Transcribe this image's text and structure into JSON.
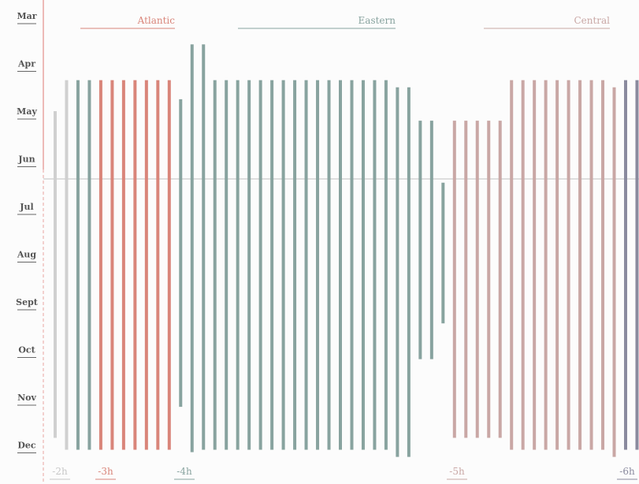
{
  "chart_data": {
    "type": "bar",
    "orientation": "vertical-range",
    "y_categories": [
      "Mar",
      "Apr",
      "May",
      "Jun",
      "Jul",
      "Aug",
      "Sept",
      "Oct",
      "Nov",
      "Dec"
    ],
    "zones": [
      {
        "name": "Atlantic",
        "color": "#d9857a"
      },
      {
        "name": "Eastern",
        "color": "#88a39f"
      },
      {
        "name": "Central",
        "color": "#c9a7a5"
      }
    ],
    "offsets": [
      {
        "label": "-2h",
        "color": "#c8c8c8"
      },
      {
        "label": "-3h",
        "color": "#d9857a"
      },
      {
        "label": "-4h",
        "color": "#88a39f"
      },
      {
        "label": "-5h",
        "color": "#c9a7a5"
      },
      {
        "label": "-6h",
        "color": "#8a8a9e"
      }
    ],
    "colors": {
      "gray": "#d0d0d0",
      "atlantic": "#d9857a",
      "eastern": "#88a39f",
      "central": "#c9a7a5",
      "mountain": "#8a8a9e",
      "axis_red": "#e8a3a0",
      "divider": "#bfbfbf"
    },
    "bars": [
      {
        "start": 2.0,
        "end": 8.85,
        "color": "gray"
      },
      {
        "start": 1.35,
        "end": 9.1,
        "color": "gray"
      },
      {
        "start": 1.35,
        "end": 9.1,
        "color": "eastern"
      },
      {
        "start": 1.35,
        "end": 9.1,
        "color": "eastern"
      },
      {
        "start": 1.35,
        "end": 9.1,
        "color": "atlantic"
      },
      {
        "start": 1.35,
        "end": 9.1,
        "color": "atlantic"
      },
      {
        "start": 1.35,
        "end": 9.1,
        "color": "atlantic"
      },
      {
        "start": 1.35,
        "end": 9.1,
        "color": "atlantic"
      },
      {
        "start": 1.35,
        "end": 9.1,
        "color": "atlantic"
      },
      {
        "start": 1.35,
        "end": 9.1,
        "color": "atlantic"
      },
      {
        "start": 1.35,
        "end": 9.1,
        "color": "atlantic"
      },
      {
        "start": 1.75,
        "end": 8.2,
        "color": "eastern"
      },
      {
        "start": 0.6,
        "end": 9.15,
        "color": "eastern"
      },
      {
        "start": 0.6,
        "end": 9.1,
        "color": "eastern"
      },
      {
        "start": 1.35,
        "end": 9.1,
        "color": "eastern"
      },
      {
        "start": 1.35,
        "end": 9.1,
        "color": "eastern"
      },
      {
        "start": 1.35,
        "end": 9.1,
        "color": "eastern"
      },
      {
        "start": 1.35,
        "end": 9.1,
        "color": "eastern"
      },
      {
        "start": 1.35,
        "end": 9.1,
        "color": "eastern"
      },
      {
        "start": 1.35,
        "end": 9.1,
        "color": "eastern"
      },
      {
        "start": 1.35,
        "end": 9.1,
        "color": "eastern"
      },
      {
        "start": 1.35,
        "end": 9.1,
        "color": "eastern"
      },
      {
        "start": 1.35,
        "end": 9.1,
        "color": "eastern"
      },
      {
        "start": 1.35,
        "end": 9.1,
        "color": "eastern"
      },
      {
        "start": 1.35,
        "end": 9.1,
        "color": "eastern"
      },
      {
        "start": 1.35,
        "end": 9.1,
        "color": "eastern"
      },
      {
        "start": 1.35,
        "end": 9.1,
        "color": "eastern"
      },
      {
        "start": 1.35,
        "end": 9.1,
        "color": "eastern"
      },
      {
        "start": 1.35,
        "end": 9.1,
        "color": "eastern"
      },
      {
        "start": 1.35,
        "end": 9.1,
        "color": "eastern"
      },
      {
        "start": 1.5,
        "end": 9.25,
        "color": "eastern"
      },
      {
        "start": 1.5,
        "end": 9.25,
        "color": "eastern"
      },
      {
        "start": 2.2,
        "end": 7.2,
        "color": "eastern"
      },
      {
        "start": 2.2,
        "end": 7.2,
        "color": "eastern"
      },
      {
        "start": 3.5,
        "end": 6.45,
        "color": "eastern"
      },
      {
        "start": 2.2,
        "end": 8.85,
        "color": "central"
      },
      {
        "start": 2.2,
        "end": 8.85,
        "color": "central"
      },
      {
        "start": 2.2,
        "end": 8.85,
        "color": "central"
      },
      {
        "start": 2.2,
        "end": 8.85,
        "color": "central"
      },
      {
        "start": 2.2,
        "end": 8.85,
        "color": "central"
      },
      {
        "start": 1.35,
        "end": 9.1,
        "color": "central"
      },
      {
        "start": 1.35,
        "end": 9.1,
        "color": "central"
      },
      {
        "start": 1.35,
        "end": 9.1,
        "color": "central"
      },
      {
        "start": 1.35,
        "end": 9.1,
        "color": "central"
      },
      {
        "start": 1.35,
        "end": 9.1,
        "color": "central"
      },
      {
        "start": 1.35,
        "end": 9.1,
        "color": "central"
      },
      {
        "start": 1.35,
        "end": 9.1,
        "color": "central"
      },
      {
        "start": 1.35,
        "end": 9.1,
        "color": "central"
      },
      {
        "start": 1.35,
        "end": 9.1,
        "color": "central"
      },
      {
        "start": 1.5,
        "end": 9.25,
        "color": "central"
      },
      {
        "start": 1.35,
        "end": 9.1,
        "color": "mountain"
      },
      {
        "start": 1.35,
        "end": 9.1,
        "color": "mountain"
      }
    ]
  }
}
